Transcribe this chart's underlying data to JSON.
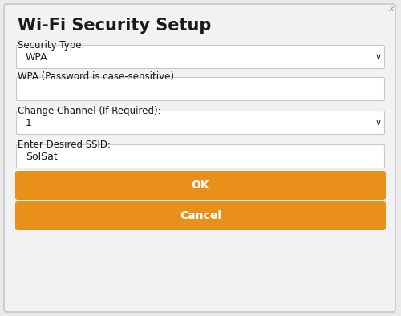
{
  "title": "Wi-Fi Security Setup",
  "bg_color": "#ebebeb",
  "dialog_bg": "#f2f2f2",
  "white": "#ffffff",
  "orange": "#e8901a",
  "text_dark": "#1a1a1a",
  "border_color": "#c8c8c8",
  "close_x_color": "#999999",
  "label1": "Security Type:",
  "field1_value": "WPA",
  "label2": "WPA (Password is case-sensitive)",
  "label3": "Change Channel (If Required):",
  "field3_value": "1",
  "label4": "Enter Desired SSID:",
  "field4_value": "SolSat",
  "btn_ok": "OK",
  "btn_cancel": "Cancel",
  "figw": 5.0,
  "figh": 3.94,
  "dpi": 100
}
